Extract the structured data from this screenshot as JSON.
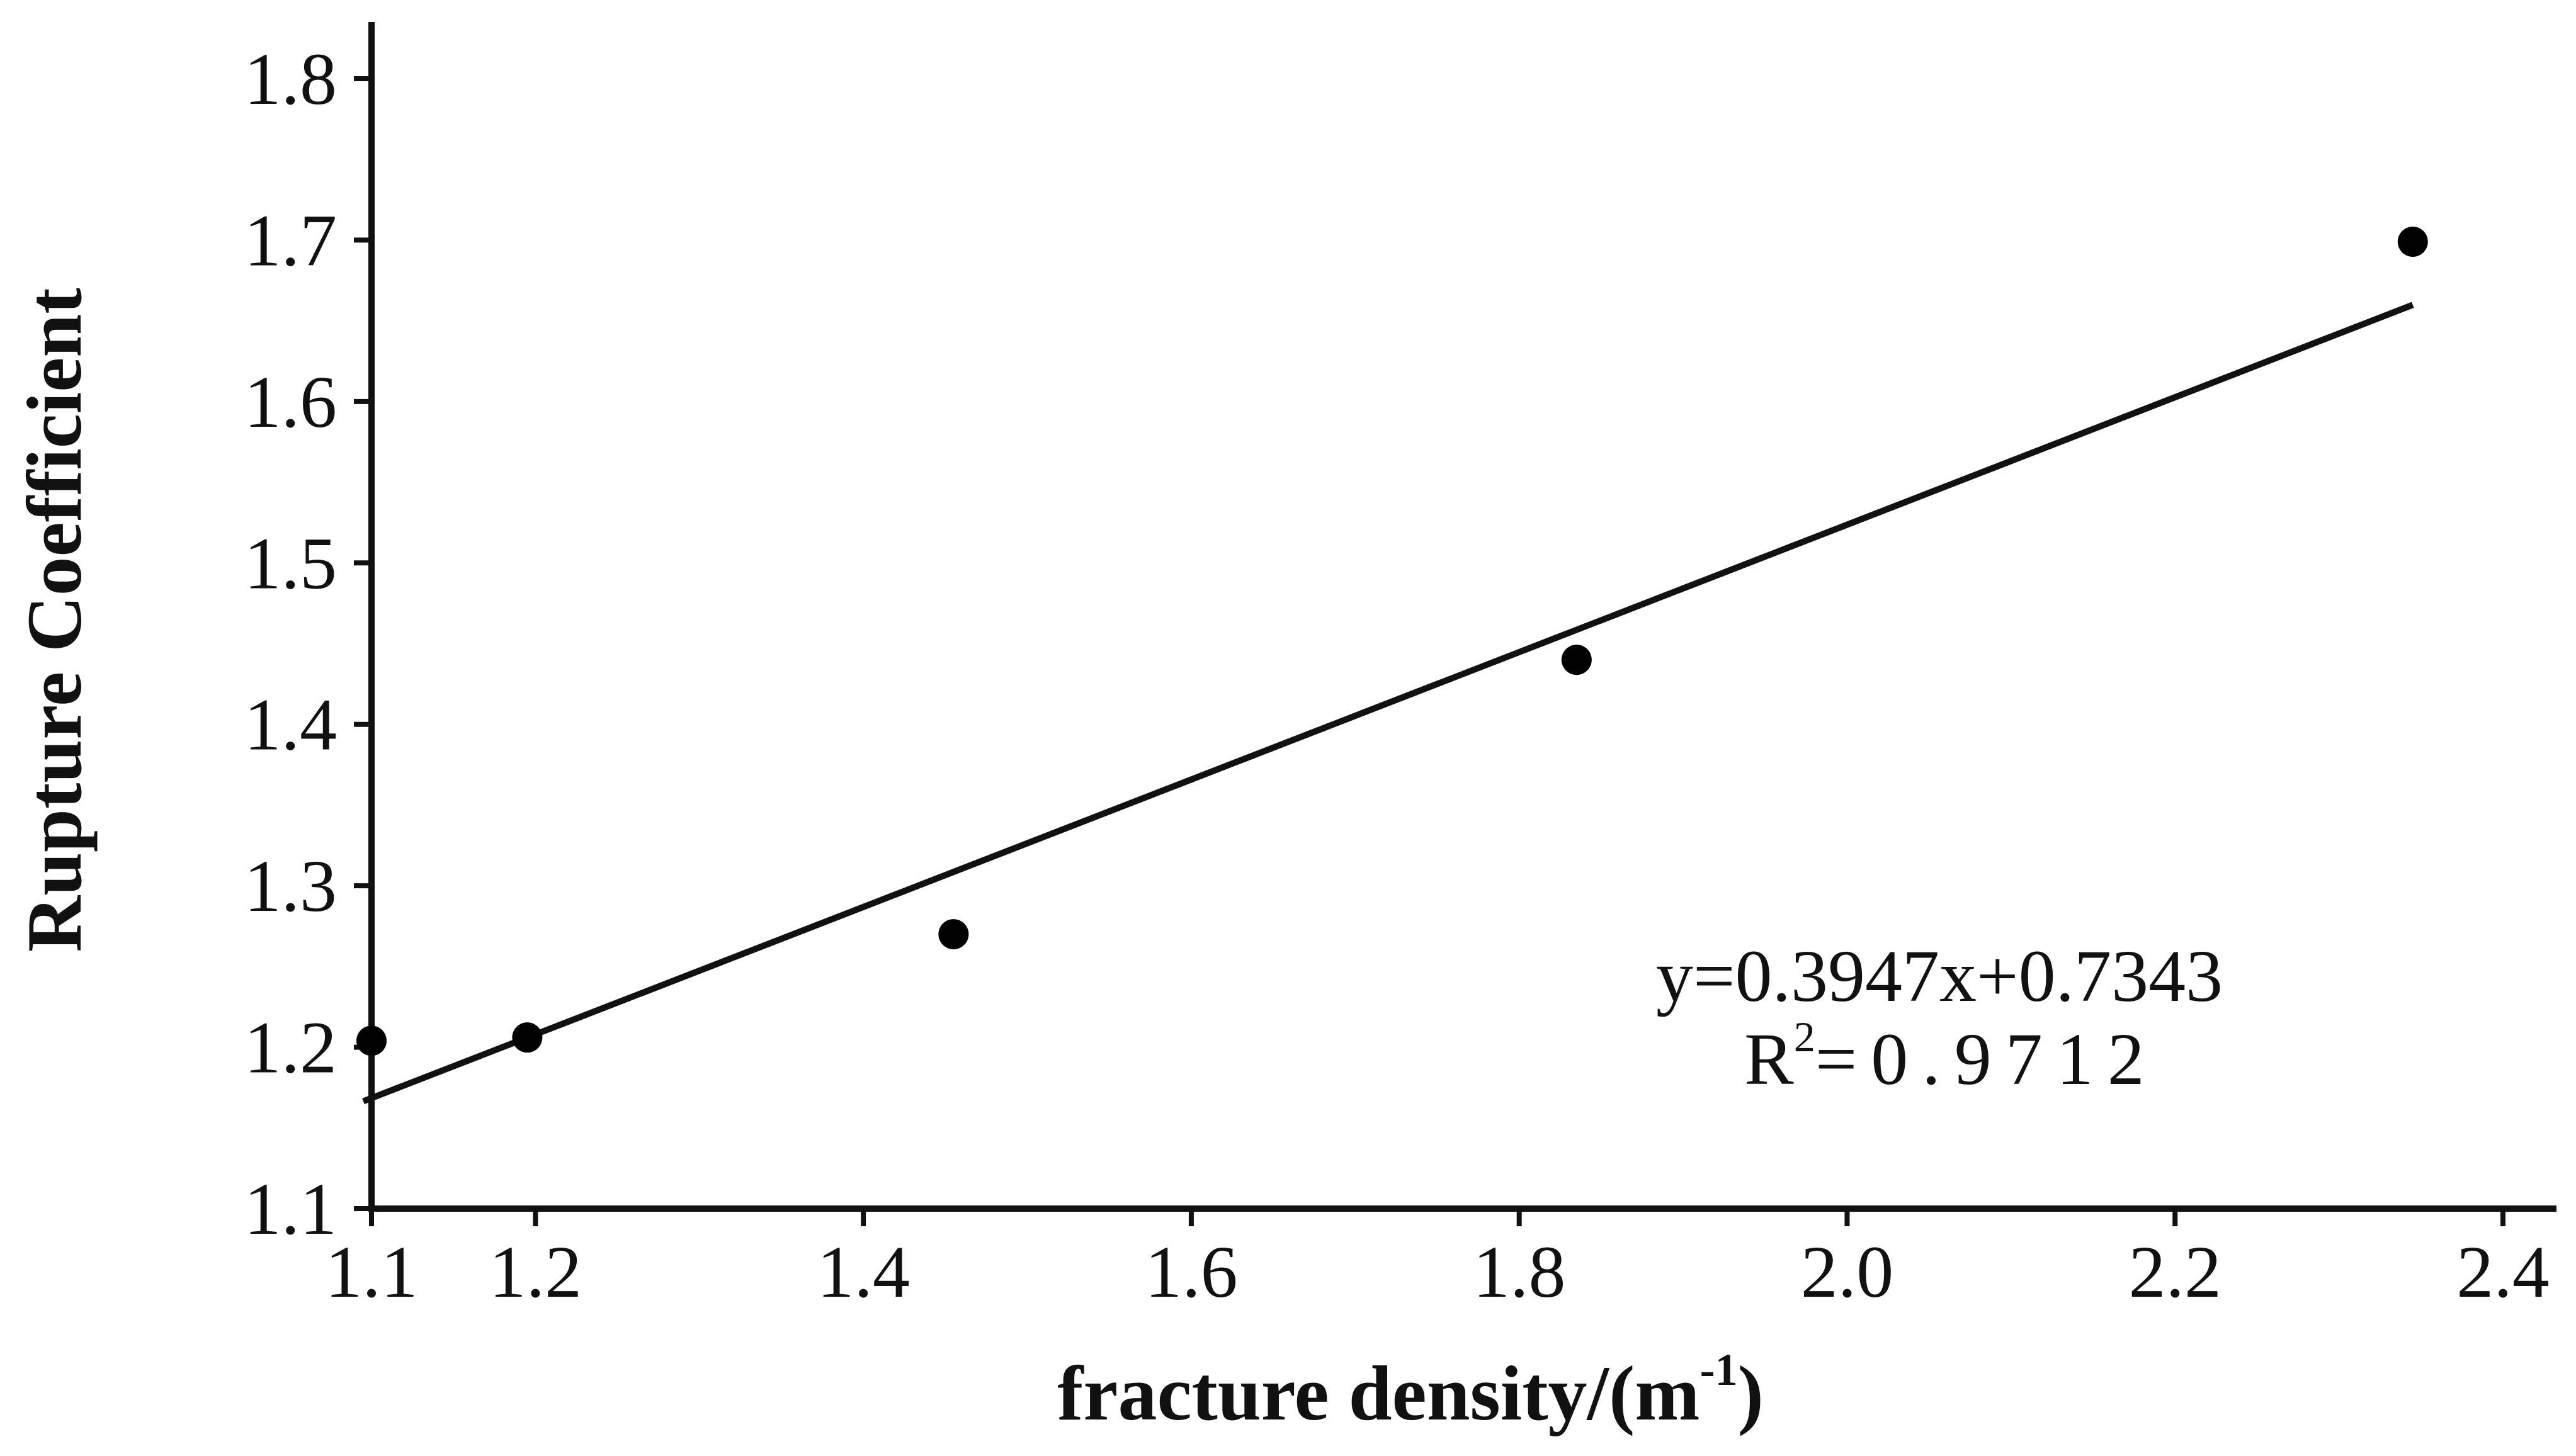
{
  "chart_data": {
    "type": "scatter",
    "xlabel": "fracture density/(m",
    "xlabel_sup": "-1",
    "xlabel_tail": ")",
    "ylabel": "Rupture Coefficient",
    "xlim": [
      1.1,
      2.45
    ],
    "ylim": [
      1.1,
      1.84
    ],
    "xticks": [
      {
        "value": 1.1,
        "label": "1.1"
      },
      {
        "value": 1.2,
        "label": "1.2"
      },
      {
        "value": 1.4,
        "label": "1.4"
      },
      {
        "value": 1.6,
        "label": "1.6"
      },
      {
        "value": 1.8,
        "label": "1.8"
      },
      {
        "value": 2.0,
        "label": "2.0"
      },
      {
        "value": 2.2,
        "label": "2.2"
      },
      {
        "value": 2.4,
        "label": "2.4"
      }
    ],
    "yticks": [
      {
        "value": 1.1,
        "label": "1.1"
      },
      {
        "value": 1.2,
        "label": "1.2"
      },
      {
        "value": 1.3,
        "label": "1.3"
      },
      {
        "value": 1.4,
        "label": "1.4"
      },
      {
        "value": 1.5,
        "label": "1.5"
      },
      {
        "value": 1.6,
        "label": "1.6"
      },
      {
        "value": 1.7,
        "label": "1.7"
      },
      {
        "value": 1.8,
        "label": "1.8"
      }
    ],
    "points": [
      {
        "x": 1.1,
        "y": 1.204
      },
      {
        "x": 1.195,
        "y": 1.206
      },
      {
        "x": 1.455,
        "y": 1.27
      },
      {
        "x": 1.835,
        "y": 1.44
      },
      {
        "x": 2.345,
        "y": 1.699
      }
    ],
    "trendline": {
      "slope": 0.3947,
      "intercept": 0.7343,
      "x_start": 1.095,
      "x_end": 2.345
    },
    "equation": "y=0.3947x+0.7343",
    "r2_prefix": "R",
    "r2_sup": "2",
    "r2_value": "=0.9712",
    "grid": false,
    "colors": {
      "axis": "#111111",
      "points": "#000000",
      "trendline": "#111111"
    }
  }
}
